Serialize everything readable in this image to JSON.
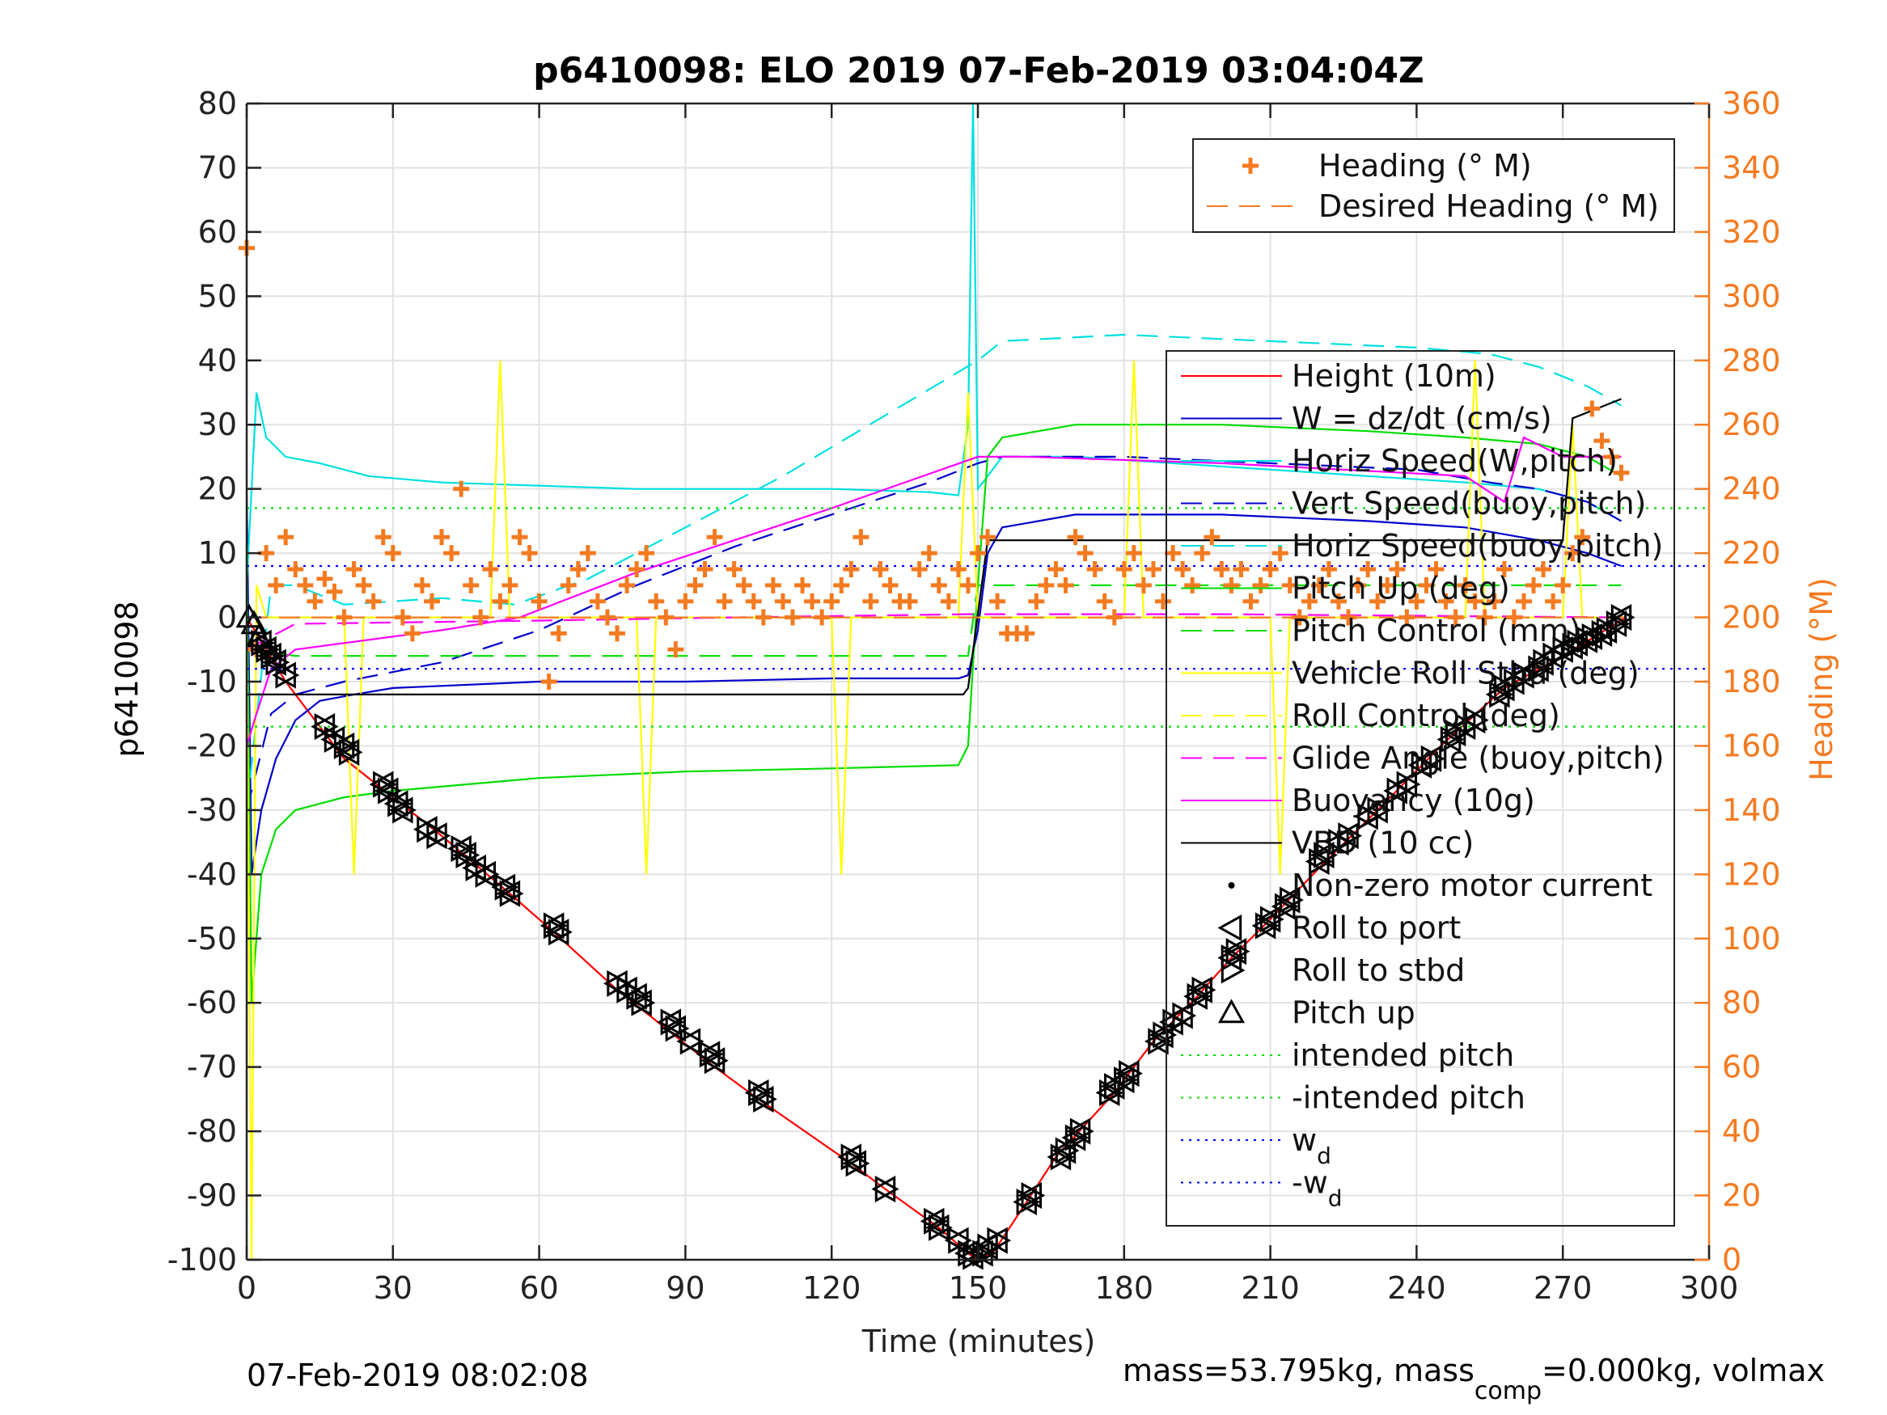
{
  "chart_data": {
    "type": "line",
    "title": "p6410098: ELO 2019 07-Feb-2019 03:04:04Z",
    "xlabel": "Time (minutes)",
    "ylabel_left": "p6410098",
    "ylabel_right": "Heading (°M)",
    "xlim": [
      0,
      300
    ],
    "ylim_left": [
      -100,
      80
    ],
    "ylim_right": [
      0,
      360
    ],
    "xticks": [
      0,
      30,
      60,
      90,
      120,
      150,
      180,
      210,
      240,
      270,
      300
    ],
    "yticks_left": [
      80,
      70,
      60,
      50,
      40,
      30,
      20,
      10,
      0,
      -10,
      -20,
      -30,
      -40,
      -50,
      -60,
      -70,
      -80,
      -90,
      -100
    ],
    "yticks_right": [
      360,
      340,
      320,
      300,
      280,
      260,
      240,
      220,
      200,
      180,
      160,
      140,
      120,
      100,
      80,
      60,
      40,
      20,
      0
    ],
    "grid": true,
    "colors": {
      "heading": "#f47a20",
      "axis_right": "#f47a20",
      "height": "#ff0000",
      "w": "#0000cc",
      "horiz_speed": "#00e0e0",
      "vert_speed_buoy": "#0000cc",
      "pitch": "#00dd00",
      "roll": "#ffff00",
      "glide": "#ff00ff",
      "vbd": "#000000",
      "wd": "#0000ff"
    },
    "heading_legend": [
      {
        "label": "Heading (° M)",
        "style": "plus",
        "color": "#f47a20"
      },
      {
        "label": "Desired Heading (° M)",
        "style": "dash",
        "color": "#f47a20"
      }
    ],
    "legend": [
      {
        "label": "Height (10m)",
        "style": "solid",
        "color": "#ff0000"
      },
      {
        "label": "W = dz/dt (cm/s)",
        "style": "solid",
        "color": "#0000cc"
      },
      {
        "label": "Horiz Speed(W,pitch)",
        "style": "solid",
        "color": "#00e0e0"
      },
      {
        "label": "Vert Speed(buoy,pitch)",
        "style": "dash",
        "color": "#0000cc"
      },
      {
        "label": "Horiz Speed(buoy,pitch)",
        "style": "dash",
        "color": "#00e0e0"
      },
      {
        "label": "Pitch Up (deg)",
        "style": "solid",
        "color": "#00dd00"
      },
      {
        "label": "Pitch Control (mm)",
        "style": "dash",
        "color": "#00dd00"
      },
      {
        "label": "Vehicle Roll Stbd (deg)",
        "style": "solid",
        "color": "#ffff00"
      },
      {
        "label": "Roll Control (deg)",
        "style": "dash",
        "color": "#ffff00"
      },
      {
        "label": "Glide Angle (buoy,pitch)",
        "style": "dash",
        "color": "#ff00ff"
      },
      {
        "label": "Buoyancy (10g)",
        "style": "solid",
        "color": "#ff00ff"
      },
      {
        "label": "VBD (10 cc)",
        "style": "solid",
        "color": "#000000"
      },
      {
        "label": "Non-zero motor current",
        "style": "dot",
        "color": "#000000"
      },
      {
        "label": "Roll to port",
        "style": "tri-left",
        "color": "#000000"
      },
      {
        "label": "Roll to stbd",
        "style": "tri-right",
        "color": "#000000"
      },
      {
        "label": "Pitch up",
        "style": "tri-up",
        "color": "#000000"
      },
      {
        "label": "intended pitch",
        "style": "dot-line",
        "color": "#00dd00"
      },
      {
        "label": "-intended pitch",
        "style": "dot-line",
        "color": "#00dd00"
      },
      {
        "label": "w",
        "sub": "d",
        "style": "dot-line",
        "color": "#0000ff"
      },
      {
        "label": "-w",
        "sub": "d",
        "style": "dot-line",
        "color": "#0000ff"
      }
    ],
    "series": [
      {
        "name": "Height (10m)",
        "axis": "left",
        "x": [
          0,
          8,
          16,
          20,
          30,
          40,
          54,
          63,
          76,
          86,
          96,
          105,
          124,
          131,
          142,
          148,
          150,
          153,
          160,
          166,
          172,
          178,
          186,
          195,
          202,
          210,
          220,
          232,
          245,
          258,
          270,
          283
        ],
        "y": [
          0,
          -10,
          -18,
          -22,
          -28,
          -34,
          -43,
          -49,
          -58,
          -64,
          -70,
          -75,
          -85,
          -89,
          -95,
          -99,
          -100,
          -99,
          -91,
          -84,
          -79,
          -74,
          -66,
          -59,
          -53,
          -47,
          -39,
          -30,
          -20,
          -11,
          -6,
          0
        ]
      },
      {
        "name": "W = dz/dt (cm/s)",
        "axis": "left",
        "x": [
          0,
          1,
          3,
          6,
          10,
          15,
          22,
          30,
          60,
          90,
          120,
          146,
          148,
          150,
          152,
          155,
          170,
          200,
          230,
          250,
          265,
          275,
          282
        ],
        "y": [
          20,
          -40,
          -30,
          -22,
          -16,
          -13,
          -12,
          -11,
          -10,
          -10,
          -9.5,
          -9.5,
          -9,
          -2,
          10,
          14,
          16,
          16,
          15,
          14,
          12,
          10,
          8
        ]
      },
      {
        "name": "Horiz Speed(W,pitch)",
        "axis": "left",
        "x": [
          0,
          2,
          4,
          8,
          15,
          25,
          40,
          60,
          80,
          100,
          120,
          140,
          146,
          148,
          149,
          150,
          152,
          155,
          170,
          190,
          210,
          230,
          250,
          265,
          275,
          282
        ],
        "y": [
          5,
          35,
          28,
          25,
          24,
          22,
          21,
          20.5,
          20,
          20,
          20,
          19.5,
          19,
          30,
          80,
          20,
          22,
          25,
          25,
          24,
          23,
          22,
          21,
          20,
          18,
          15
        ]
      },
      {
        "name": "Vert Speed(buoy,pitch)",
        "axis": "left",
        "x": [
          0,
          5,
          10,
          20,
          40,
          60,
          80,
          100,
          120,
          140,
          150,
          155,
          180,
          210,
          240,
          255,
          265,
          275,
          282
        ],
        "y": [
          -30,
          -15,
          -12,
          -10,
          -7,
          -2,
          5,
          11,
          16,
          21,
          24,
          25,
          25,
          24,
          23,
          21,
          20,
          18,
          15
        ]
      },
      {
        "name": "Horiz Speed(buoy,pitch)",
        "axis": "left",
        "x": [
          0,
          5,
          10,
          20,
          40,
          55,
          70,
          90,
          110,
          130,
          150,
          155,
          180,
          210,
          240,
          255,
          265,
          275,
          282
        ],
        "y": [
          -30,
          5,
          5,
          2,
          3,
          2,
          6,
          14,
          22,
          31,
          40,
          43,
          44,
          43,
          42,
          41,
          39,
          36,
          33
        ]
      },
      {
        "name": "Pitch Up (deg)",
        "axis": "left",
        "x": [
          0,
          1,
          3,
          6,
          10,
          20,
          30,
          60,
          90,
          120,
          146,
          148,
          150,
          152,
          155,
          170,
          200,
          230,
          250,
          265,
          275,
          282
        ],
        "y": [
          10,
          -60,
          -40,
          -33,
          -30,
          -28,
          -27,
          -25,
          -24,
          -23.5,
          -23,
          -20,
          5,
          25,
          28,
          30,
          30,
          29,
          28,
          27,
          25,
          22
        ]
      },
      {
        "name": "Pitch Control (mm)",
        "axis": "left",
        "x": [
          0,
          10,
          60,
          120,
          148,
          150,
          200,
          250,
          282
        ],
        "y": [
          -5,
          -6,
          -6,
          -6,
          -6,
          5,
          5,
          5,
          5
        ]
      },
      {
        "name": "Vehicle Roll Stbd (deg)",
        "axis": "left",
        "x": [
          0,
          1,
          2,
          4,
          6,
          20,
          22,
          24,
          50,
          52,
          54,
          80,
          82,
          84,
          120,
          122,
          124,
          146,
          148,
          150,
          180,
          182,
          184,
          210,
          212,
          214,
          250,
          252,
          254,
          270,
          272,
          274,
          282
        ],
        "y": [
          0,
          -100,
          5,
          0,
          0,
          0,
          -40,
          0,
          0,
          40,
          0,
          0,
          -40,
          0,
          0,
          -40,
          0,
          0,
          35,
          0,
          0,
          40,
          0,
          0,
          -40,
          0,
          0,
          40,
          0,
          0,
          30,
          0,
          0
        ]
      },
      {
        "name": "Glide Angle (buoy,pitch)",
        "axis": "left",
        "x": [
          0,
          10,
          60,
          100,
          148,
          150,
          200,
          282
        ],
        "y": [
          -5,
          -1,
          -0.5,
          0,
          0.5,
          0.5,
          0.5,
          0
        ]
      },
      {
        "name": "Buoyancy (10g)",
        "axis": "left",
        "x": [
          0,
          2,
          5,
          10,
          20,
          40,
          56,
          80,
          100,
          120,
          150,
          160,
          200,
          250,
          258,
          262,
          270,
          282
        ],
        "y": [
          -20,
          -15,
          -8,
          -5,
          -4,
          -2,
          0,
          7,
          12,
          17,
          25,
          25,
          24,
          22,
          18,
          28,
          25,
          25
        ]
      },
      {
        "name": "VBD (10 cc)",
        "axis": "left",
        "x": [
          0,
          2,
          100,
          147,
          148,
          152,
          200,
          250,
          270,
          272,
          282
        ],
        "y": [
          -12,
          -12,
          -12,
          -12,
          -11,
          12,
          12,
          12,
          12,
          31,
          34
        ]
      },
      {
        "name": "intended pitch",
        "axis": "left",
        "x": [
          0,
          300
        ],
        "y": [
          17,
          17
        ]
      },
      {
        "name": "-intended pitch",
        "axis": "left",
        "x": [
          0,
          300
        ],
        "y": [
          -17,
          -17
        ]
      },
      {
        "name": "w",
        "axis": "left",
        "x": [
          0,
          300
        ],
        "y": [
          8,
          8
        ]
      },
      {
        "name": "-w",
        "axis": "left",
        "x": [
          0,
          300
        ],
        "y": [
          -8,
          -8
        ]
      },
      {
        "name": "Desired Heading (° M)",
        "axis": "right",
        "x": [
          0,
          283
        ],
        "y": [
          200,
          200
        ]
      },
      {
        "name": "Heading (° M)",
        "axis": "right",
        "x": [
          0,
          2,
          4,
          6,
          8,
          10,
          12,
          14,
          16,
          18,
          20,
          22,
          24,
          26,
          28,
          30,
          32,
          34,
          36,
          38,
          40,
          42,
          44,
          46,
          48,
          50,
          52,
          54,
          56,
          58,
          60,
          62,
          64,
          66,
          68,
          70,
          72,
          74,
          76,
          78,
          80,
          82,
          84,
          86,
          88,
          90,
          92,
          94,
          96,
          98,
          100,
          102,
          104,
          106,
          108,
          110,
          112,
          114,
          116,
          118,
          120,
          122,
          124,
          126,
          128,
          130,
          132,
          134,
          136,
          138,
          140,
          142,
          144,
          146,
          148,
          150,
          152,
          154,
          156,
          158,
          160,
          162,
          164,
          166,
          168,
          170,
          172,
          174,
          176,
          178,
          180,
          182,
          184,
          186,
          188,
          190,
          192,
          194,
          196,
          198,
          200,
          202,
          204,
          206,
          208,
          210,
          212,
          214,
          216,
          218,
          220,
          222,
          224,
          226,
          228,
          230,
          232,
          234,
          236,
          238,
          240,
          242,
          244,
          246,
          248,
          250,
          252,
          254,
          256,
          258,
          260,
          262,
          264,
          266,
          268,
          270,
          272,
          274,
          276,
          278,
          280,
          282
        ],
        "y": [
          315,
          190,
          220,
          210,
          225,
          215,
          210,
          205,
          212,
          208,
          200,
          215,
          210,
          205,
          225,
          220,
          200,
          195,
          210,
          205,
          225,
          220,
          240,
          210,
          200,
          215,
          205,
          210,
          225,
          220,
          205,
          180,
          195,
          210,
          215,
          220,
          205,
          200,
          195,
          210,
          215,
          220,
          205,
          200,
          190,
          205,
          210,
          215,
          225,
          205,
          215,
          210,
          205,
          200,
          210,
          205,
          200,
          210,
          205,
          200,
          205,
          210,
          215,
          225,
          205,
          215,
          210,
          205,
          205,
          215,
          220,
          210,
          205,
          215,
          210,
          220,
          225,
          205,
          195,
          195,
          195,
          205,
          210,
          215,
          210,
          225,
          220,
          215,
          205,
          200,
          215,
          220,
          210,
          215,
          205,
          220,
          215,
          210,
          220,
          225,
          215,
          210,
          215,
          205,
          210,
          215,
          220,
          210,
          200,
          205,
          210,
          215,
          205,
          200,
          210,
          215,
          205,
          210,
          215,
          200,
          205,
          210,
          215,
          205,
          200,
          210,
          205,
          200,
          205,
          215,
          200,
          205,
          210,
          215,
          205,
          210,
          220,
          225,
          265,
          255,
          250,
          245
        ]
      }
    ],
    "markers": {
      "pitch_up": {
        "x": [
          0.5,
          1.5,
          2.5
        ],
        "y": [
          0,
          -1,
          -3
        ]
      },
      "roll_to_port": {
        "x": [
          3,
          4,
          5,
          6,
          8,
          16,
          18,
          20,
          21,
          28,
          29,
          31,
          32,
          37,
          39,
          44,
          45,
          47,
          49,
          53,
          54,
          63,
          64,
          76,
          78,
          80,
          81,
          87,
          88,
          91,
          95,
          96,
          105,
          106,
          124,
          125,
          131,
          141,
          142,
          146,
          148,
          149,
          151,
          152,
          154,
          160,
          161,
          167,
          168,
          170,
          171,
          177,
          178,
          180,
          181,
          187,
          188,
          190,
          192,
          195,
          196,
          202,
          203,
          209,
          210,
          213,
          214,
          220,
          221,
          224,
          226,
          230,
          232,
          236,
          238,
          241,
          243,
          247,
          248,
          250,
          252,
          257,
          258,
          260,
          262,
          265,
          266,
          268,
          270,
          272,
          273,
          275,
          276,
          278,
          279,
          281,
          282
        ],
        "y": [
          -4,
          -5,
          -6,
          -7,
          -9,
          -17,
          -19,
          -20,
          -21,
          -26,
          -27,
          -29,
          -30,
          -33,
          -34,
          -36,
          -37,
          -39,
          -40,
          -42,
          -43,
          -48,
          -49,
          -57,
          -58,
          -59,
          -60,
          -63,
          -64,
          -66,
          -68,
          -69,
          -74,
          -75,
          -84,
          -85,
          -89,
          -94,
          -95,
          -97,
          -99,
          -99.5,
          -99,
          -98,
          -97,
          -91,
          -90,
          -84,
          -83,
          -81,
          -80,
          -74,
          -73,
          -72,
          -71,
          -66,
          -65,
          -63,
          -62,
          -59,
          -58,
          -53,
          -52,
          -48,
          -47,
          -45,
          -44,
          -38,
          -37,
          -35,
          -34,
          -31,
          -30,
          -27,
          -26,
          -23,
          -22,
          -19,
          -18,
          -17,
          -16,
          -12,
          -11,
          -10,
          -9,
          -8,
          -7,
          -6,
          -5,
          -4.5,
          -4,
          -3.5,
          -3,
          -2.5,
          -2,
          -1,
          0
        ]
      }
    }
  },
  "footer": {
    "timestamp": "07-Feb-2019 08:02:08",
    "mass_pre": "mass=53.795kg, mass",
    "mass_sub": "comp",
    "mass_post": "=0.000kg, volmax"
  }
}
